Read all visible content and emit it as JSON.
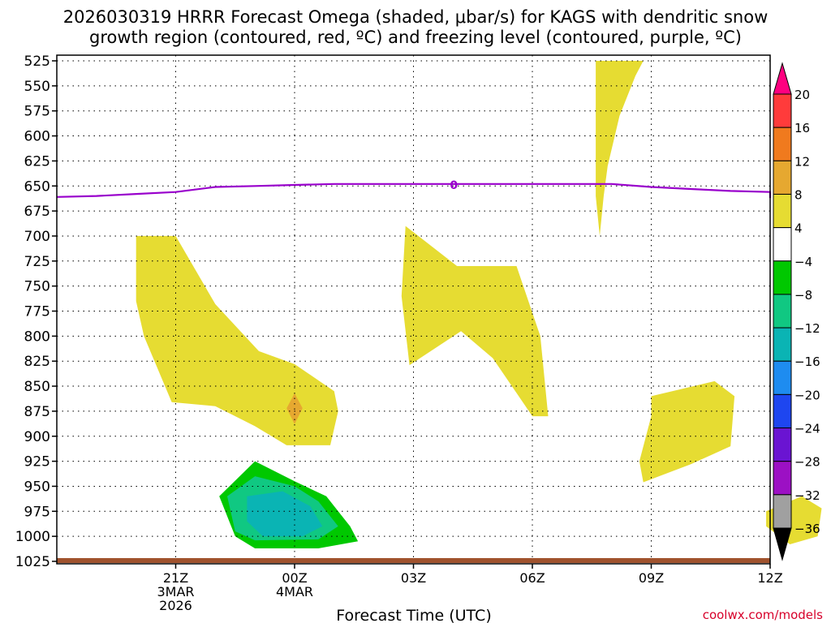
{
  "title_line1": "2026030319 HRRR Forecast Omega (shaded, μbar/s) for KAGS with dendritic snow",
  "title_line2": "growth region (contoured, red, ºC) and freezing level (contoured, purple, ºC)",
  "credit": "coolwx.com/models",
  "chart_data": {
    "type": "contour",
    "xlabel": "Forecast Time (UTC)",
    "ylabel": "",
    "x_range_hours": [
      -3,
      15
    ],
    "y_range_mb": [
      525,
      1025
    ],
    "y_axis_reversed": true,
    "grid": true,
    "x_ticks": [
      {
        "h": 0,
        "lines": [
          "21Z",
          "3MAR",
          "2026"
        ]
      },
      {
        "h": 3,
        "lines": [
          "00Z",
          "4MAR"
        ]
      },
      {
        "h": 6,
        "lines": [
          "03Z"
        ]
      },
      {
        "h": 9,
        "lines": [
          "06Z"
        ]
      },
      {
        "h": 12,
        "lines": [
          "09Z"
        ]
      },
      {
        "h": 15,
        "lines": [
          "12Z"
        ]
      }
    ],
    "y_ticks": [
      525,
      550,
      575,
      600,
      625,
      650,
      675,
      700,
      725,
      750,
      775,
      800,
      825,
      850,
      875,
      900,
      925,
      950,
      975,
      1000,
      1025
    ],
    "colorbar": {
      "labels": [
        "20",
        "16",
        "12",
        "8",
        "4",
        "−4",
        "−8",
        "−12",
        "−16",
        "−20",
        "−24",
        "−28",
        "−32",
        "−36"
      ],
      "colors": [
        "#ff0080",
        "#ff3b3b",
        "#f07a1e",
        "#e6a830",
        "#e6dc32",
        "#ffffff",
        "#00c800",
        "#10c882",
        "#0ab4b4",
        "#1e8cf0",
        "#1e46f0",
        "#6a14d2",
        "#9c10c4",
        "#a0a0a0",
        "#000000"
      ]
    },
    "freezing_level": {
      "label": "0",
      "color": "#9900cc",
      "points": [
        [
          -3,
          661
        ],
        [
          -2,
          660
        ],
        [
          -1,
          658
        ],
        [
          0,
          656
        ],
        [
          1,
          651
        ],
        [
          2,
          650
        ],
        [
          3,
          649
        ],
        [
          4,
          648
        ],
        [
          5,
          648
        ],
        [
          6,
          648
        ],
        [
          7,
          648
        ],
        [
          8,
          648
        ],
        [
          9,
          648
        ],
        [
          10,
          648
        ],
        [
          11,
          648
        ],
        [
          12,
          651
        ],
        [
          13,
          653
        ],
        [
          14,
          655
        ],
        [
          15,
          656
        ],
        [
          16,
          658
        ],
        [
          17,
          660
        ],
        [
          18,
          662
        ]
      ]
    },
    "surface_color": "#a0522d",
    "omega_regions": [
      {
        "value_range": "4 to 8",
        "color": "#e6dc32",
        "points": [
          [
            10.6,
            525
          ],
          [
            11.8,
            525
          ],
          [
            11.6,
            540
          ],
          [
            11.2,
            580
          ],
          [
            10.9,
            630
          ],
          [
            10.8,
            660
          ],
          [
            10.7,
            700
          ],
          [
            10.6,
            660
          ],
          [
            10.6,
            600
          ]
        ]
      },
      {
        "value_range": "4 to 8",
        "color": "#e6dc32",
        "points": [
          [
            -1,
            700
          ],
          [
            0,
            700
          ],
          [
            1,
            768
          ],
          [
            2.1,
            815
          ],
          [
            3,
            828
          ],
          [
            4,
            855
          ],
          [
            4.1,
            875
          ],
          [
            3.9,
            909
          ],
          [
            2.8,
            909
          ],
          [
            2,
            890
          ],
          [
            1,
            870
          ],
          [
            -0.1,
            866
          ],
          [
            -0.8,
            800
          ],
          [
            -1,
            765
          ]
        ]
      },
      {
        "value_range": "4 to 8",
        "color": "#e6dc32",
        "points": [
          [
            5.8,
            690
          ],
          [
            7.1,
            730
          ],
          [
            8.6,
            730
          ],
          [
            9.2,
            800
          ],
          [
            9.4,
            880
          ],
          [
            9,
            880
          ],
          [
            8,
            822
          ],
          [
            7.2,
            795
          ],
          [
            5.9,
            829
          ],
          [
            5.7,
            760
          ]
        ]
      },
      {
        "value_range": "4 to 8",
        "color": "#e6dc32",
        "points": [
          [
            12,
            860
          ],
          [
            13.6,
            845
          ],
          [
            14.1,
            860
          ],
          [
            14,
            910
          ],
          [
            13,
            928
          ],
          [
            11.8,
            946
          ],
          [
            11.7,
            925
          ],
          [
            12,
            880
          ]
        ]
      },
      {
        "value_range": "4 to 8",
        "color": "#e6dc32",
        "points": [
          [
            14.9,
            975
          ],
          [
            15.8,
            960
          ],
          [
            16.3,
            972
          ],
          [
            16.2,
            1000
          ],
          [
            15.5,
            1008
          ],
          [
            14.9,
            990
          ]
        ]
      },
      {
        "value_range": "8 to 12",
        "color": "#e6a830",
        "points": [
          [
            2.8,
            872
          ],
          [
            3.0,
            857
          ],
          [
            3.2,
            872
          ],
          [
            3.0,
            888
          ]
        ]
      },
      {
        "value_range": "-4 to -8",
        "color": "#00c800",
        "points": [
          [
            1.1,
            960
          ],
          [
            2,
            925
          ],
          [
            3,
            945
          ],
          [
            3.8,
            960
          ],
          [
            4.4,
            990
          ],
          [
            4.6,
            1005
          ],
          [
            3.6,
            1012
          ],
          [
            2,
            1012
          ],
          [
            1.5,
            1000
          ]
        ]
      },
      {
        "value_range": "-8 to -12",
        "color": "#10c882",
        "points": [
          [
            1.3,
            960
          ],
          [
            2,
            940
          ],
          [
            3,
            950
          ],
          [
            3.6,
            965
          ],
          [
            4.1,
            990
          ],
          [
            3.6,
            1003
          ],
          [
            2,
            1004
          ],
          [
            1.5,
            995
          ]
        ]
      },
      {
        "value_range": "-12 to -16",
        "color": "#0ab4b4",
        "points": [
          [
            1.8,
            960
          ],
          [
            2.7,
            955
          ],
          [
            3.4,
            970
          ],
          [
            3.7,
            990
          ],
          [
            3.2,
            1000
          ],
          [
            2.2,
            1000
          ],
          [
            1.8,
            985
          ]
        ]
      }
    ]
  }
}
